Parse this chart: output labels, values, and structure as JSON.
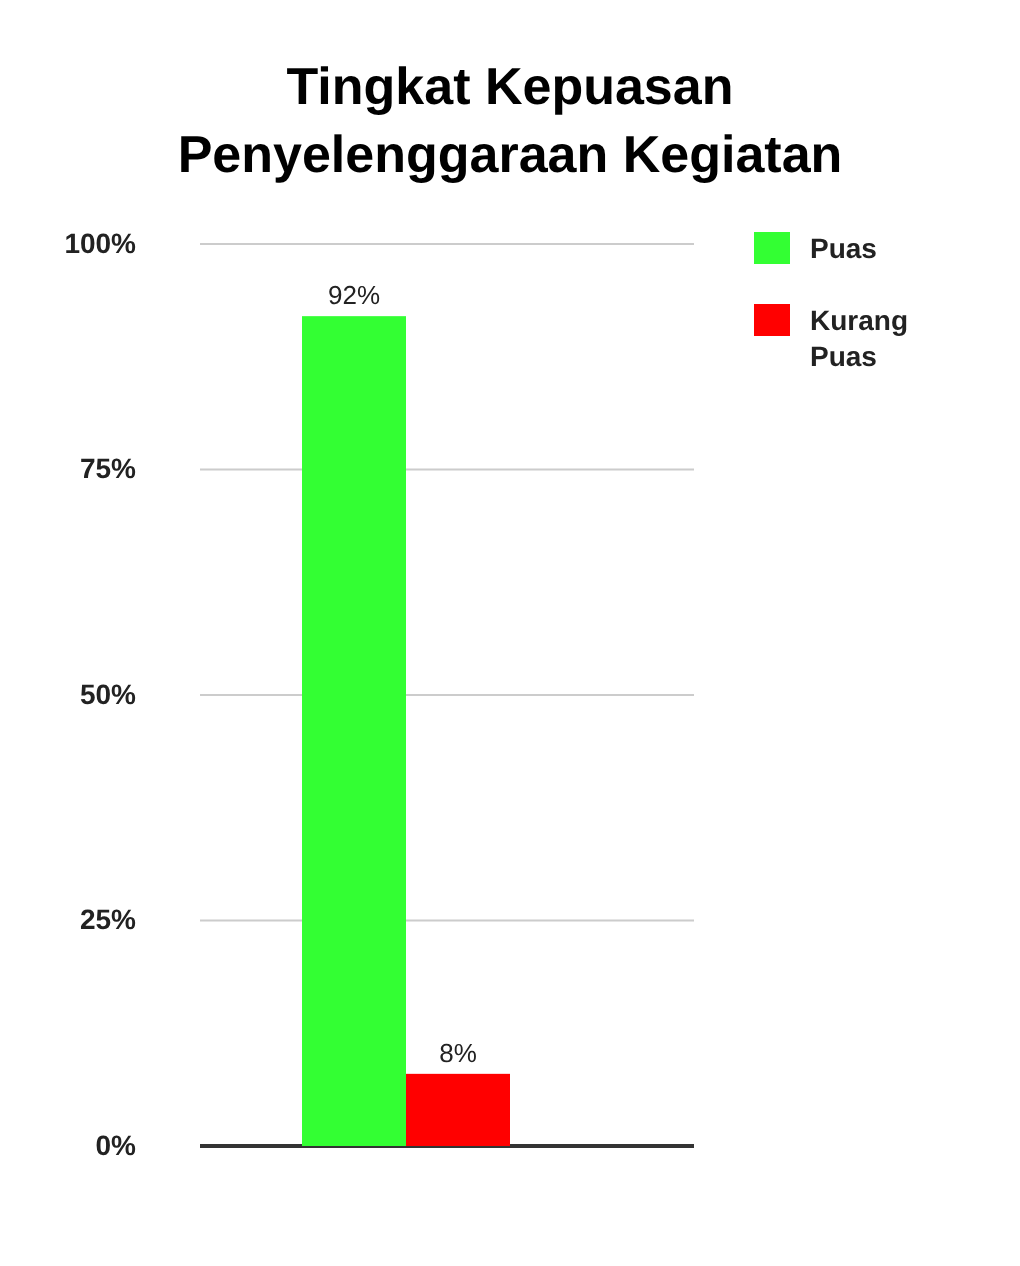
{
  "chart_data": {
    "type": "bar",
    "title": "Tingkat Kepuasan Penyelenggaraan Kegiatan",
    "categories": [
      null
    ],
    "series": [
      {
        "name": "Puas",
        "color": "#33ff33",
        "values": [
          92
        ],
        "value_labels": [
          "92%"
        ]
      },
      {
        "name": "Kurang Puas",
        "color": "#ff0000",
        "values": [
          8
        ],
        "value_labels": [
          "8%"
        ]
      }
    ],
    "ylim": [
      0,
      100
    ],
    "yticks": [
      {
        "value": 0,
        "label": "0%"
      },
      {
        "value": 25,
        "label": "25%"
      },
      {
        "value": 50,
        "label": "50%"
      },
      {
        "value": 75,
        "label": "75%"
      },
      {
        "value": 100,
        "label": "100%"
      }
    ],
    "grid": "y",
    "legend": "right"
  }
}
